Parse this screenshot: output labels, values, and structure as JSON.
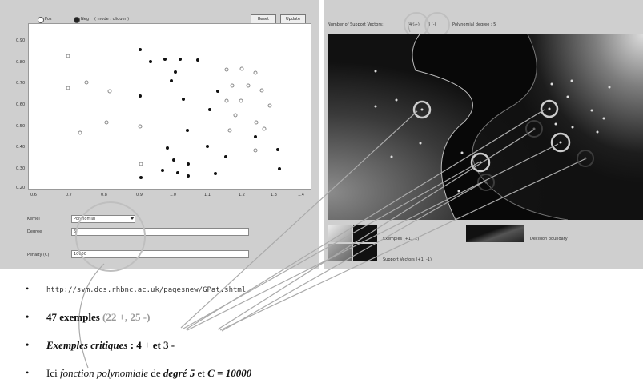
{
  "left_panel": {
    "radio_a": "Pos",
    "radio_b": "Neg",
    "radio_hint": "( mode : cliquer )",
    "reset_button": "Reset",
    "update_button": "Update",
    "y_ticks": [
      "0.90",
      "0.80",
      "0.70",
      "0.60",
      "0.50",
      "0.40",
      "0.30",
      "0.20"
    ],
    "x_ticks": [
      "0.6",
      "0.7",
      "0.8",
      "0.9",
      "1.0",
      "1.1",
      "1.2",
      "1.3",
      "1.4"
    ],
    "kernel_label": "Kernel",
    "kernel_value": "Polynomial",
    "degree_label": "Degree",
    "degree_value": "5",
    "penalty_label": "Penalty (C)",
    "penalty_value": "10000"
  },
  "right_panel": {
    "header_sv_label": "Number of Support Vectors:",
    "header_pos_value": "4 (+)",
    "header_neg_value": "3 (-)",
    "header_rest": "Polynomial degree : 5",
    "legend_pos": "Exemples (+1, -1)",
    "legend_sv": "Support Vectors (+1, -1)",
    "legend_boundary": "Decision boundary"
  },
  "bullets": {
    "url": "http://svm.dcs.rhbnc.ac.uk/pagesnew/GPat.shtml",
    "examples_prefix": "47 exemples",
    "examples_counts": "(22 +, 25 -)",
    "critical_label": "Exemples critiques",
    "critical_value": ": 4 + et 3 -",
    "line4_ici": "Ici",
    "line4_fn": "fonction polynomiale",
    "line4_de": "de",
    "line4_degree": "degré 5",
    "line4_et": "et",
    "line4_c": "C = 10000"
  },
  "colors": {
    "panel_bg": "#cfcfcf",
    "plot_bg": "#ffffff",
    "highlight_circle": "#bfbfbf",
    "bullet_gray": "#999999"
  }
}
